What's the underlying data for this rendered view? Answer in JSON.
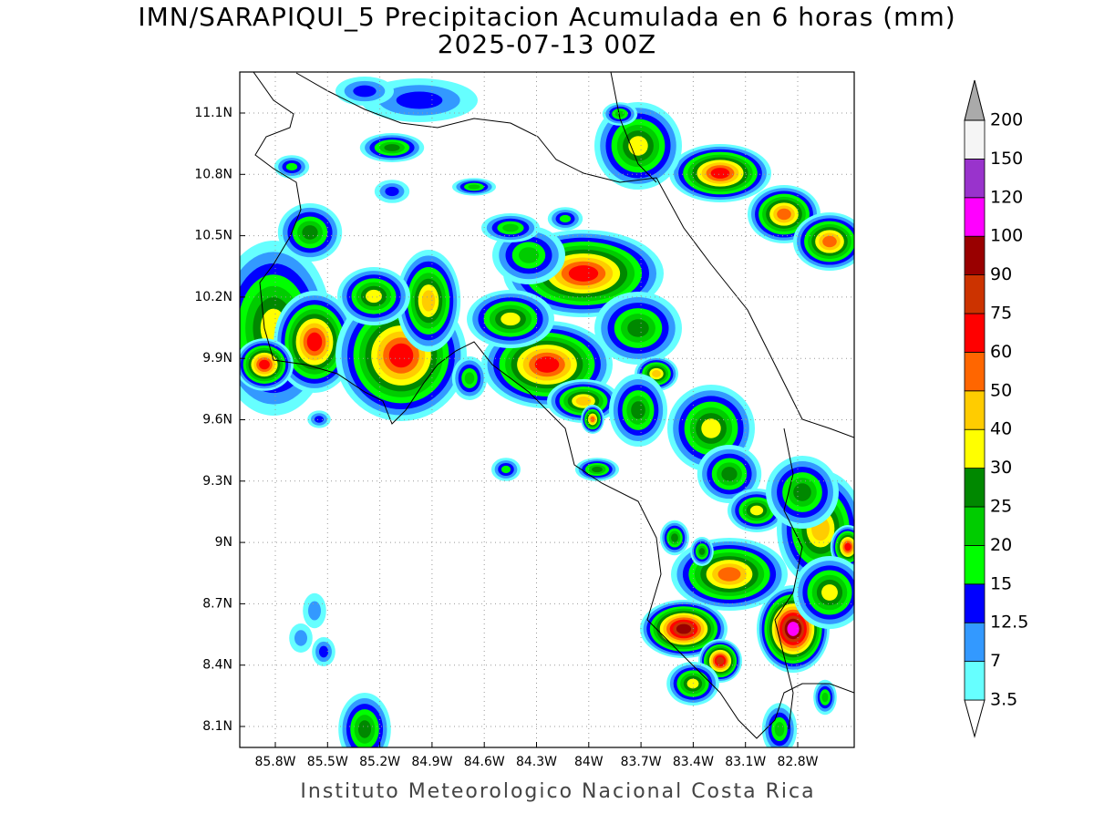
{
  "title": "IMN/SARAPIQUI_5 Precipitacion Acumulada en 6 horas (mm)",
  "subtitle": "2025-07-13 00Z",
  "map": {
    "lat_labels": [
      "11.1N",
      "10.8N",
      "10.5N",
      "10.2N",
      "9.9N",
      "9.6N",
      "9.3N",
      "9N",
      "8.7N",
      "8.4N",
      "8.1N"
    ],
    "lon_labels": [
      "85.8W",
      "85.5W",
      "85.2W",
      "84.9W",
      "84.6W",
      "84.3W",
      "84W",
      "83.7W",
      "83.4W",
      "83.1W",
      "82.8W"
    ],
    "grid": true
  },
  "colorbar": {
    "levels": [
      "3.5",
      "7",
      "12.5",
      "15",
      "20",
      "25",
      "30",
      "40",
      "50",
      "60",
      "75",
      "90",
      "100",
      "120",
      "150",
      "200"
    ],
    "colors": [
      "#ffffff",
      "#66ffff",
      "#3399ff",
      "#0000ff",
      "#00ff00",
      "#00cc00",
      "#008800",
      "#ffff00",
      "#ffcc00",
      "#ff6600",
      "#ff0000",
      "#cc3300",
      "#990000",
      "#ff00ff",
      "#9933cc",
      "#f5f5f5",
      "#aaaaaa"
    ]
  },
  "footer": "Instituto Meteorologico Nacional Costa Rica"
}
